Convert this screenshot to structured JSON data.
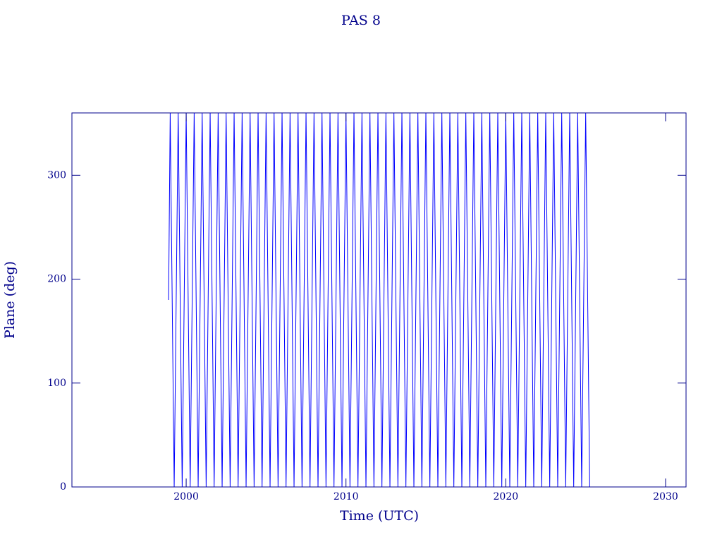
{
  "chart_data": {
    "type": "line",
    "title": "PAS 8",
    "x_label": "Time (UTC)",
    "y_label": "Plane (deg)",
    "x": [
      1998.9,
      1999,
      1999.25,
      1999.5,
      1999.75,
      2000,
      2000.25,
      2000.5,
      2000.75,
      2001,
      2001.25,
      2001.5,
      2001.75,
      2002,
      2002.25,
      2002.5,
      2002.75,
      2003,
      2003.25,
      2003.5,
      2003.75,
      2004,
      2004.25,
      2004.5,
      2004.75,
      2005,
      2005.25,
      2005.5,
      2005.75,
      2006,
      2006.25,
      2006.5,
      2006.75,
      2007,
      2007.25,
      2007.5,
      2007.75,
      2008,
      2008.25,
      2008.5,
      2008.75,
      2009,
      2009.25,
      2009.5,
      2009.75,
      2010,
      2010.25,
      2010.5,
      2010.75,
      2011,
      2011.25,
      2011.5,
      2011.75,
      2012,
      2012.25,
      2012.5,
      2012.75,
      2013,
      2013.25,
      2013.5,
      2013.75,
      2014,
      2014.25,
      2014.5,
      2014.75,
      2015,
      2015.25,
      2015.5,
      2015.75,
      2016,
      2016.25,
      2016.5,
      2016.75,
      2017,
      2017.25,
      2017.5,
      2017.75,
      2018,
      2018.25,
      2018.5,
      2018.75,
      2019,
      2019.25,
      2019.5,
      2019.75,
      2020,
      2020.25,
      2020.5,
      2020.75,
      2021,
      2021.25,
      2021.5,
      2021.75,
      2022,
      2022.25,
      2022.5,
      2022.75,
      2023,
      2023.25,
      2023.5,
      2023.75,
      2024,
      2024.25,
      2024.5,
      2024.75,
      2025,
      2025.25
    ],
    "series": [
      {
        "name": "Plane",
        "color": "#0000ff",
        "values": [
          180,
          360,
          0,
          360,
          0,
          360,
          0,
          360,
          0,
          360,
          0,
          360,
          0,
          360,
          0,
          360,
          0,
          360,
          0,
          360,
          0,
          360,
          0,
          360,
          0,
          360,
          0,
          360,
          0,
          360,
          0,
          360,
          0,
          360,
          0,
          360,
          0,
          360,
          0,
          360,
          0,
          360,
          0,
          360,
          0,
          360,
          0,
          360,
          0,
          360,
          0,
          360,
          0,
          360,
          0,
          360,
          0,
          360,
          0,
          360,
          0,
          360,
          0,
          360,
          0,
          360,
          0,
          360,
          0,
          360,
          0,
          360,
          0,
          360,
          0,
          360,
          0,
          360,
          0,
          360,
          0,
          360,
          0,
          360,
          0,
          360,
          0,
          360,
          0,
          360,
          0,
          360,
          0,
          360,
          0,
          360,
          0,
          360,
          0,
          360,
          0,
          360,
          0,
          360,
          0,
          360,
          0
        ]
      }
    ],
    "xlim": [
      1992.85,
      2031.28
    ],
    "xticks": [
      2000,
      2010,
      2020,
      2030
    ],
    "ylim": [
      0,
      360
    ],
    "yticks": [
      0,
      100,
      200,
      300
    ],
    "axis_color": "#00008b"
  }
}
